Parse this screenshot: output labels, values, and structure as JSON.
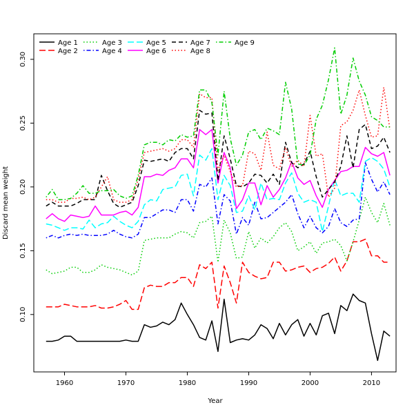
{
  "chart_data": {
    "type": "line",
    "title": "",
    "xlabel": "Year",
    "ylabel": "Discard mean weight",
    "xlim": [
      1955,
      2014
    ],
    "ylim": [
      0.055,
      0.32
    ],
    "x_ticks": [
      1960,
      1970,
      1980,
      1990,
      2000,
      2010
    ],
    "y_ticks": [
      0.1,
      0.15,
      0.2,
      0.25,
      0.3
    ],
    "y_tick_labels": [
      "0.10",
      "0.15",
      "0.20",
      "0.25",
      "0.30"
    ],
    "grid": false,
    "legend_position": "top-left",
    "x": [
      1957,
      1958,
      1959,
      1960,
      1961,
      1962,
      1963,
      1964,
      1965,
      1966,
      1967,
      1968,
      1969,
      1970,
      1971,
      1972,
      1973,
      1974,
      1975,
      1976,
      1977,
      1978,
      1979,
      1980,
      1981,
      1982,
      1983,
      1984,
      1985,
      1986,
      1987,
      1988,
      1989,
      1990,
      1991,
      1992,
      1993,
      1994,
      1995,
      1996,
      1997,
      1998,
      1999,
      2000,
      2001,
      2002,
      2003,
      2004,
      2005,
      2006,
      2007,
      2008,
      2009,
      2010,
      2011,
      2012,
      2013
    ],
    "series": [
      {
        "name": "Age 1",
        "color": "#000000",
        "dash": "solid",
        "values": [
          0.079,
          0.079,
          0.08,
          0.083,
          0.083,
          0.079,
          0.079,
          0.079,
          0.079,
          0.079,
          0.079,
          0.079,
          0.079,
          0.08,
          0.079,
          0.079,
          0.092,
          0.09,
          0.091,
          0.094,
          0.092,
          0.096,
          0.109,
          0.1,
          0.092,
          0.082,
          0.08,
          0.095,
          0.071,
          0.112,
          0.078,
          0.08,
          0.081,
          0.08,
          0.084,
          0.092,
          0.089,
          0.081,
          0.093,
          0.084,
          0.092,
          0.096,
          0.083,
          0.093,
          0.084,
          0.099,
          0.101,
          0.085,
          0.107,
          0.103,
          0.116,
          0.111,
          0.109,
          0.085,
          0.064,
          0.087,
          0.083
        ]
      },
      {
        "name": "Age 2",
        "color": "#ff0000",
        "dash": "longdash",
        "values": [
          0.106,
          0.106,
          0.106,
          0.108,
          0.107,
          0.106,
          0.106,
          0.106,
          0.107,
          0.105,
          0.105,
          0.106,
          0.108,
          0.111,
          0.104,
          0.104,
          0.121,
          0.123,
          0.122,
          0.122,
          0.125,
          0.125,
          0.129,
          0.129,
          0.122,
          0.139,
          0.136,
          0.141,
          0.105,
          0.138,
          0.125,
          0.109,
          0.141,
          0.133,
          0.13,
          0.128,
          0.129,
          0.141,
          0.141,
          0.134,
          0.135,
          0.137,
          0.138,
          0.133,
          0.136,
          0.137,
          0.14,
          0.145,
          0.134,
          0.142,
          0.157,
          0.157,
          0.159,
          0.146,
          0.146,
          0.141,
          0.141
        ]
      },
      {
        "name": "Age 3",
        "color": "#00cd00",
        "dash": "dotted",
        "values": [
          0.135,
          0.132,
          0.133,
          0.134,
          0.137,
          0.137,
          0.133,
          0.133,
          0.135,
          0.139,
          0.137,
          0.136,
          0.135,
          0.133,
          0.131,
          0.134,
          0.158,
          0.159,
          0.16,
          0.16,
          0.16,
          0.163,
          0.165,
          0.164,
          0.16,
          0.172,
          0.173,
          0.177,
          0.141,
          0.174,
          0.164,
          0.144,
          0.145,
          0.165,
          0.152,
          0.16,
          0.156,
          0.161,
          0.168,
          0.172,
          0.165,
          0.15,
          0.153,
          0.157,
          0.148,
          0.156,
          0.157,
          0.159,
          0.154,
          0.142,
          0.157,
          0.174,
          0.192,
          0.18,
          0.172,
          0.187,
          0.17
        ]
      },
      {
        "name": "Age 4",
        "color": "#0000ff",
        "dash": "dotdash",
        "values": [
          0.16,
          0.162,
          0.16,
          0.162,
          0.163,
          0.162,
          0.163,
          0.162,
          0.162,
          0.162,
          0.163,
          0.166,
          0.163,
          0.161,
          0.16,
          0.163,
          0.176,
          0.176,
          0.179,
          0.182,
          0.182,
          0.18,
          0.19,
          0.19,
          0.181,
          0.202,
          0.2,
          0.207,
          0.171,
          0.194,
          0.189,
          0.163,
          0.176,
          0.17,
          0.188,
          0.175,
          0.176,
          0.18,
          0.184,
          0.188,
          0.194,
          0.179,
          0.168,
          0.177,
          0.168,
          0.164,
          0.169,
          0.183,
          0.172,
          0.169,
          0.174,
          0.175,
          0.219,
          0.206,
          0.196,
          0.204,
          0.194
        ]
      },
      {
        "name": "Age 5",
        "color": "#00ffff",
        "dash": "longdash",
        "values": [
          0.171,
          0.17,
          0.168,
          0.166,
          0.168,
          0.168,
          0.167,
          0.174,
          0.168,
          0.171,
          0.172,
          0.177,
          0.173,
          0.17,
          0.168,
          0.173,
          0.186,
          0.19,
          0.189,
          0.198,
          0.199,
          0.2,
          0.209,
          0.21,
          0.193,
          0.225,
          0.221,
          0.23,
          0.19,
          0.209,
          0.201,
          0.18,
          0.181,
          0.193,
          0.182,
          0.203,
          0.19,
          0.191,
          0.19,
          0.203,
          0.211,
          0.195,
          0.188,
          0.19,
          0.188,
          0.165,
          0.185,
          0.206,
          0.193,
          0.195,
          0.195,
          0.188,
          0.22,
          0.223,
          0.22,
          0.214,
          0.2
        ]
      },
      {
        "name": "Age 6",
        "color": "#ff00ff",
        "dash": "solid",
        "values": [
          0.175,
          0.179,
          0.175,
          0.173,
          0.178,
          0.177,
          0.176,
          0.177,
          0.185,
          0.178,
          0.178,
          0.178,
          0.18,
          0.181,
          0.178,
          0.184,
          0.208,
          0.208,
          0.21,
          0.209,
          0.213,
          0.215,
          0.222,
          0.222,
          0.215,
          0.245,
          0.241,
          0.245,
          0.203,
          0.227,
          0.215,
          0.183,
          0.19,
          0.203,
          0.203,
          0.186,
          0.201,
          0.192,
          0.198,
          0.207,
          0.22,
          0.207,
          0.202,
          0.205,
          0.193,
          0.184,
          0.198,
          0.205,
          0.212,
          0.213,
          0.216,
          0.216,
          0.231,
          0.226,
          0.224,
          0.227,
          0.209
        ]
      },
      {
        "name": "Age 7",
        "color": "#000000",
        "dash": "dashed",
        "values": [
          0.185,
          0.188,
          0.185,
          0.185,
          0.185,
          0.187,
          0.19,
          0.19,
          0.19,
          0.209,
          0.197,
          0.187,
          0.184,
          0.186,
          0.188,
          0.201,
          0.221,
          0.22,
          0.221,
          0.222,
          0.22,
          0.227,
          0.23,
          0.23,
          0.222,
          0.26,
          0.257,
          0.258,
          0.205,
          0.24,
          0.222,
          0.201,
          0.2,
          0.203,
          0.21,
          0.209,
          0.203,
          0.21,
          0.202,
          0.235,
          0.219,
          0.215,
          0.218,
          0.228,
          0.208,
          0.192,
          0.198,
          0.204,
          0.216,
          0.24,
          0.215,
          0.245,
          0.249,
          0.23,
          0.232,
          0.239,
          0.227
        ]
      },
      {
        "name": "Age 8",
        "color": "#ff0000",
        "dash": "dotted",
        "values": [
          0.19,
          0.19,
          0.188,
          0.188,
          0.191,
          0.191,
          0.192,
          0.19,
          0.192,
          0.2,
          0.208,
          0.19,
          0.188,
          0.188,
          0.19,
          0.206,
          0.227,
          0.228,
          0.229,
          0.23,
          0.228,
          0.23,
          0.237,
          0.237,
          0.231,
          0.273,
          0.27,
          0.27,
          0.213,
          0.225,
          0.212,
          0.2,
          0.201,
          0.228,
          0.226,
          0.213,
          0.243,
          0.217,
          0.214,
          0.231,
          0.216,
          0.221,
          0.216,
          0.256,
          0.224,
          0.226,
          0.192,
          0.199,
          0.248,
          0.251,
          0.26,
          0.276,
          0.256,
          0.239,
          0.24,
          0.278,
          0.245
        ]
      },
      {
        "name": "Age 9",
        "color": "#00cd00",
        "dash": "dotdash",
        "values": [
          0.192,
          0.198,
          0.19,
          0.19,
          0.191,
          0.195,
          0.201,
          0.195,
          0.195,
          0.197,
          0.197,
          0.198,
          0.193,
          0.191,
          0.193,
          0.209,
          0.233,
          0.235,
          0.235,
          0.233,
          0.237,
          0.236,
          0.241,
          0.239,
          0.24,
          0.276,
          0.276,
          0.266,
          0.225,
          0.275,
          0.238,
          0.217,
          0.225,
          0.243,
          0.245,
          0.237,
          0.246,
          0.244,
          0.241,
          0.282,
          0.261,
          0.218,
          0.217,
          0.225,
          0.253,
          0.264,
          0.284,
          0.309,
          0.257,
          0.272,
          0.301,
          0.283,
          0.272,
          0.255,
          0.252,
          0.247,
          0.247
        ]
      }
    ]
  }
}
